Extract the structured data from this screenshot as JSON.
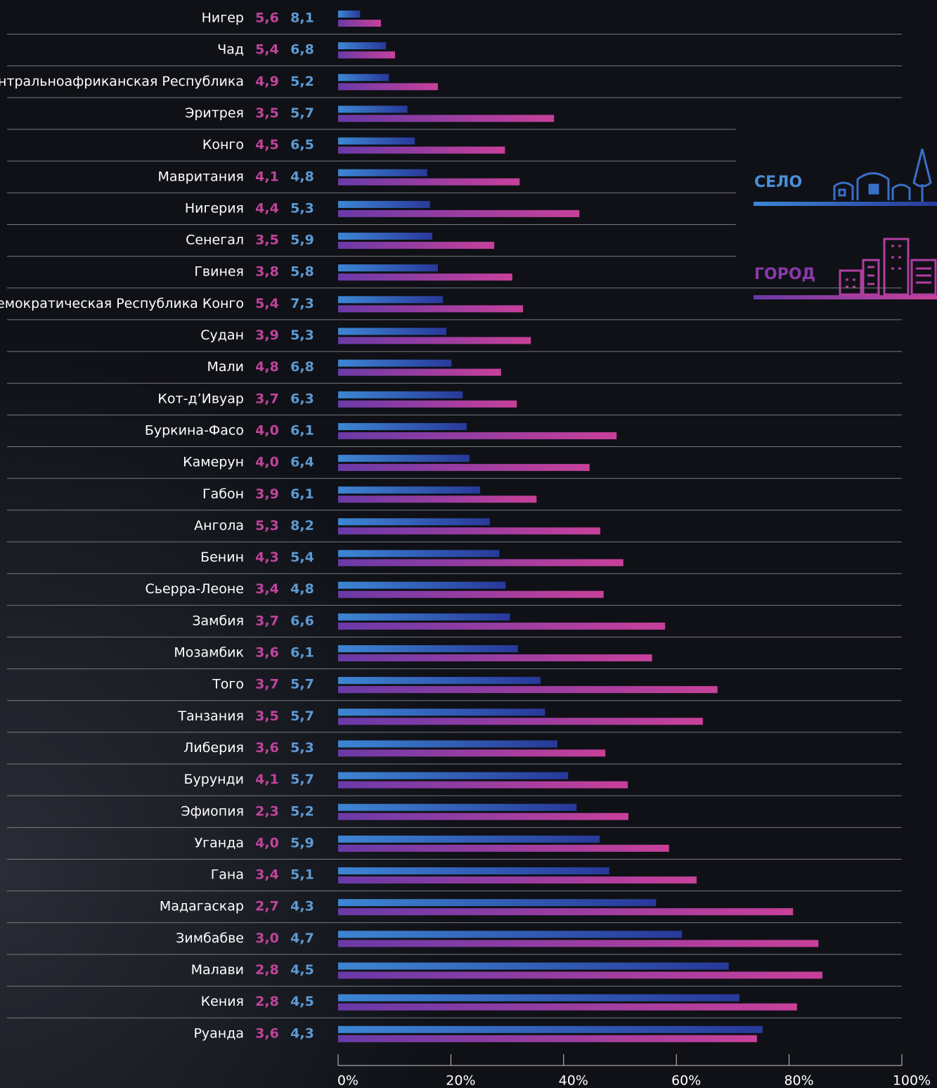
{
  "chart_data": {
    "type": "bar",
    "orientation": "horizontal",
    "categories": [
      "Нигер",
      "Чад",
      "Центральноафриканская Республика",
      "Эритрея",
      "Конго",
      "Мавритания",
      "Нигерия",
      "Сенегал",
      "Гвинея",
      "Демократическая Республика Конго",
      "Судан",
      "Мали",
      "Кот-д’Ивуар",
      "Буркина-Фасо",
      "Камерун",
      "Габон",
      "Ангола",
      "Бенин",
      "Сьерра-Леоне",
      "Замбия",
      "Мозамбик",
      "Того",
      "Танзания",
      "Либерия",
      "Бурунди",
      "Эфиопия",
      "Уганда",
      "Гана",
      "Мадагаскар",
      "Зимбабве",
      "Малави",
      "Кения",
      "Руанда"
    ],
    "column_1": [
      "5,6",
      "5,4",
      "4,9",
      "3,5",
      "4,5",
      "4,1",
      "4,4",
      "3,5",
      "3,8",
      "5,4",
      "3,9",
      "4,8",
      "3,7",
      "4,0",
      "4,0",
      "3,9",
      "5,3",
      "4,3",
      "3,4",
      "3,7",
      "3,6",
      "3,7",
      "3,5",
      "3,6",
      "4,1",
      "2,3",
      "4,0",
      "3,4",
      "2,7",
      "3,0",
      "2,8",
      "2,8",
      "3,6"
    ],
    "column_2": [
      "8,1",
      "6,8",
      "5,2",
      "5,7",
      "6,5",
      "4,8",
      "5,3",
      "5,9",
      "5,8",
      "7,3",
      "5,3",
      "6,8",
      "6,3",
      "6,1",
      "6,4",
      "6,1",
      "8,2",
      "5,4",
      "4,8",
      "6,6",
      "6,1",
      "5,7",
      "5,7",
      "5,3",
      "5,7",
      "5,2",
      "5,9",
      "5,1",
      "4,3",
      "4,7",
      "4,5",
      "4,5",
      "4,3"
    ],
    "series": [
      {
        "name": "СЕЛО",
        "color": [
          "#3d86d4",
          "#28399a"
        ],
        "values": [
          3.9,
          8.5,
          9.0,
          12.3,
          13.6,
          15.8,
          16.3,
          16.7,
          17.7,
          18.6,
          19.2,
          20.1,
          22.1,
          22.8,
          23.3,
          25.2,
          26.9,
          28.6,
          29.7,
          30.5,
          31.9,
          35.9,
          36.7,
          38.9,
          40.8,
          42.3,
          46.4,
          48.1,
          56.4,
          61.0,
          69.3,
          71.2,
          75.3
        ]
      },
      {
        "name": "ГОРОД",
        "color": [
          "#6a3aa8",
          "#c8409a"
        ],
        "values": [
          7.6,
          10.1,
          17.7,
          38.3,
          29.6,
          32.2,
          42.8,
          27.7,
          30.9,
          32.8,
          34.2,
          28.9,
          31.7,
          49.4,
          44.6,
          35.2,
          46.5,
          50.6,
          47.1,
          58.0,
          55.7,
          67.3,
          64.7,
          47.4,
          51.4,
          51.5,
          58.7,
          63.6,
          80.7,
          85.2,
          85.9,
          81.4,
          74.3
        ]
      }
    ],
    "xlim": [
      0,
      100
    ],
    "xticks": [
      {
        "value": 0,
        "label": "0%"
      },
      {
        "value": 20,
        "label": "20%"
      },
      {
        "value": 40,
        "label": "40%"
      },
      {
        "value": 60,
        "label": "60%"
      },
      {
        "value": 80,
        "label": "80%"
      },
      {
        "value": 100,
        "label": "100%"
      }
    ]
  }
}
